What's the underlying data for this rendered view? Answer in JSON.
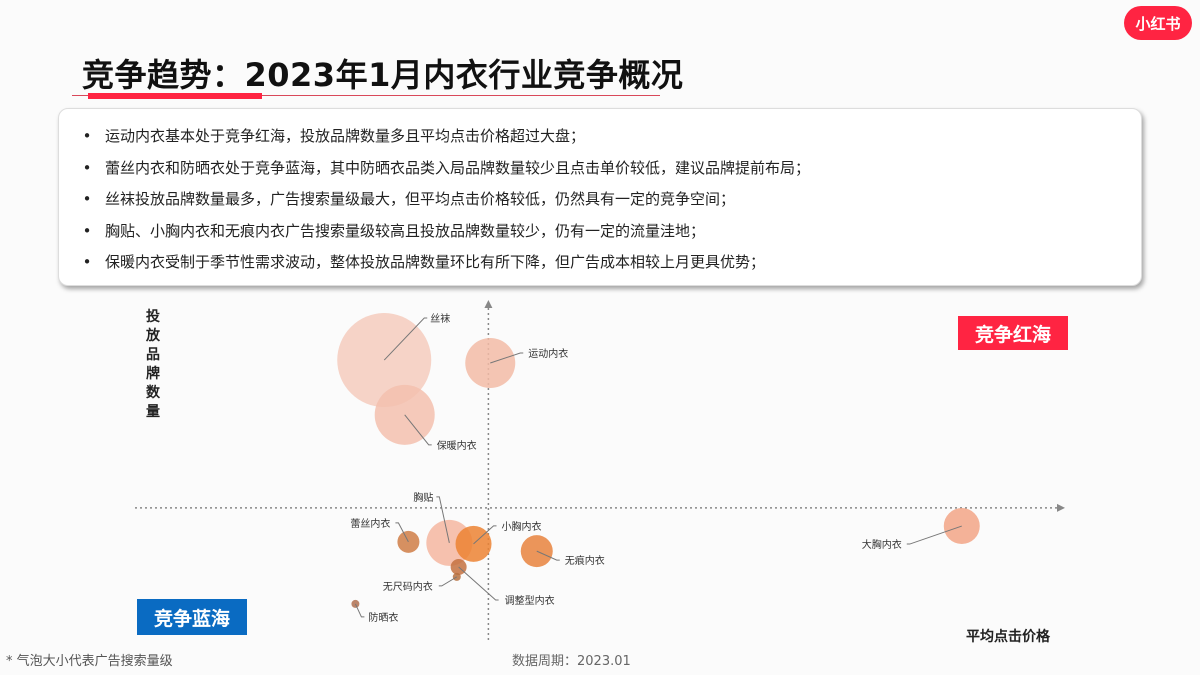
{
  "logo": "小红书",
  "title": "竞争趋势：2023年1月内衣行业竞争概况",
  "bullets": [
    "运动内衣基本处于竞争红海，投放品牌数量多且平均点击价格超过大盘；",
    "蕾丝内衣和防晒衣处于竞争蓝海，其中防晒衣品类入局品牌数量较少且点击单价较低，建议品牌提前布局；",
    "丝袜投放品牌数量最多，广告搜索量级最大，但平均点击价格较低，仍然具有一定的竞争空间；",
    "胸贴、小胸内衣和无痕内衣广告搜索量级较高且投放品牌数量较少，仍有一定的流量洼地；",
    "保暖内衣受制于季节性需求波动，整体投放品牌数量环比有所下降，但广告成本相较上月更具优势；"
  ],
  "bullet_symbol": "•",
  "quadrants": {
    "red": "竞争红海",
    "blue": "竞争蓝海"
  },
  "footnote": "* 气泡大小代表广告搜索量级",
  "period": "数据周期：2023.01",
  "chart_data": {
    "type": "scatter",
    "subtype": "bubble",
    "xlabel": "平均点击价格",
    "ylabel": "投放品牌数量",
    "xlim": [
      0,
      100
    ],
    "ylim": [
      0,
      100
    ],
    "axis_cross": {
      "x": 38,
      "y": 37
    },
    "grid": false,
    "points": [
      {
        "name": "丝袜",
        "x": 26.8,
        "y": 81.8,
        "size": 47,
        "color": "#f5cbbd"
      },
      {
        "name": "运动内衣",
        "x": 38.2,
        "y": 80.9,
        "size": 25,
        "color": "#f2bba6"
      },
      {
        "name": "保暖内衣",
        "x": 29.0,
        "y": 65.2,
        "size": 30,
        "color": "#f3c0ae"
      },
      {
        "name": "胸贴",
        "x": 33.8,
        "y": 26.4,
        "size": 23,
        "color": "#f4b6a0"
      },
      {
        "name": "小胸内衣",
        "x": 36.4,
        "y": 26.1,
        "size": 18,
        "color": "#ec8233"
      },
      {
        "name": "蕾丝内衣",
        "x": 29.4,
        "y": 26.7,
        "size": 11,
        "color": "#cf7d45"
      },
      {
        "name": "无痕内衣",
        "x": 43.2,
        "y": 23.9,
        "size": 16,
        "color": "#e8823d"
      },
      {
        "name": "调整型内衣",
        "x": 34.8,
        "y": 19.1,
        "size": 8,
        "color": "#c47140"
      },
      {
        "name": "无尺码内衣",
        "x": 34.6,
        "y": 16.1,
        "size": 4,
        "color": "#b5703f"
      },
      {
        "name": "防晒衣",
        "x": 23.7,
        "y": 7.9,
        "size": 4,
        "color": "#b07050"
      },
      {
        "name": "大胸内衣",
        "x": 88.9,
        "y": 31.5,
        "size": 18,
        "color": "#f2a586"
      }
    ]
  }
}
